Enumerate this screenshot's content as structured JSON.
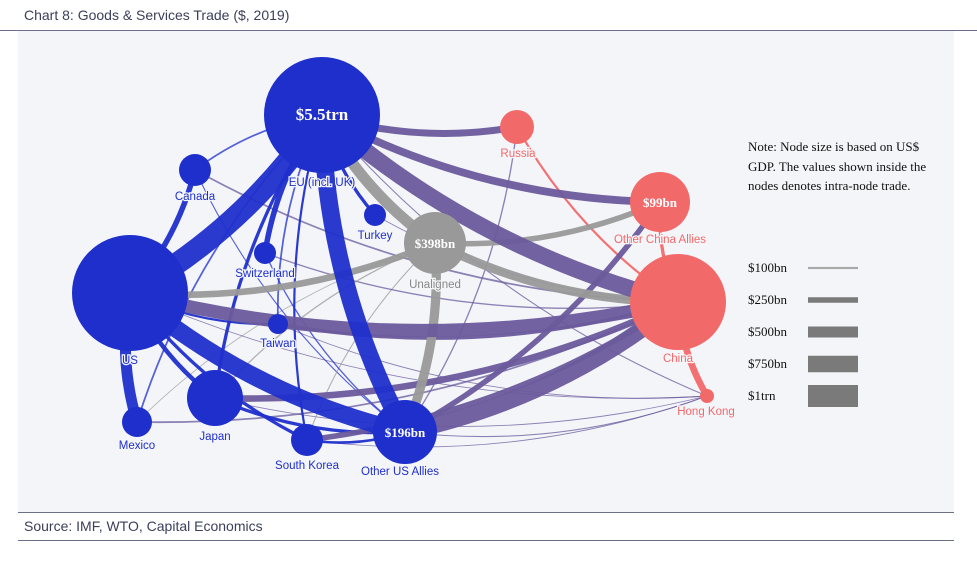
{
  "chart_title": "Chart 8: Goods & Services Trade ($, 2019)",
  "source": "Source: IMF, WTO, Capital Economics",
  "note": "Note: Node size is based on US$ GDP. The values shown inside the nodes denotes intra-node trade.",
  "colors": {
    "us_bloc": "#1f2fcc",
    "china_bloc": "#f2696a",
    "unaligned": "#999999",
    "cross_bloc": "#6a5a9c",
    "background": "#f4f5f9"
  },
  "chart_data": {
    "type": "network",
    "title": "Chart 8: Goods & Services Trade ($, 2019)",
    "nodes": [
      {
        "id": "eu",
        "label": "EU (incl. UK)",
        "group": "us_bloc",
        "value_label": "$5.5trn"
      },
      {
        "id": "us",
        "label": "US",
        "group": "us_bloc",
        "value_label": ""
      },
      {
        "id": "canada",
        "label": "Canada",
        "group": "us_bloc",
        "value_label": ""
      },
      {
        "id": "switzerland",
        "label": "Switzerland",
        "group": "us_bloc",
        "value_label": ""
      },
      {
        "id": "turkey",
        "label": "Turkey",
        "group": "us_bloc",
        "value_label": ""
      },
      {
        "id": "taiwan",
        "label": "Taiwan",
        "group": "us_bloc",
        "value_label": ""
      },
      {
        "id": "japan",
        "label": "Japan",
        "group": "us_bloc",
        "value_label": ""
      },
      {
        "id": "mexico",
        "label": "Mexico",
        "group": "us_bloc",
        "value_label": ""
      },
      {
        "id": "skorea",
        "label": "South Korea",
        "group": "us_bloc",
        "value_label": ""
      },
      {
        "id": "otherus",
        "label": "Other US Allies",
        "group": "us_bloc",
        "value_label": "$196bn"
      },
      {
        "id": "unaligned",
        "label": "Unaligned",
        "group": "unaligned",
        "value_label": "$398bn"
      },
      {
        "id": "russia",
        "label": "Russia",
        "group": "china_bloc",
        "value_label": ""
      },
      {
        "id": "otherchina",
        "label": "Other China Allies",
        "group": "china_bloc",
        "value_label": "$99bn"
      },
      {
        "id": "china",
        "label": "China",
        "group": "china_bloc",
        "value_label": ""
      },
      {
        "id": "hongkong",
        "label": "Hong Kong",
        "group": "china_bloc",
        "value_label": ""
      }
    ],
    "edges": [
      {
        "source": "us",
        "target": "eu",
        "value_bn": 1000
      },
      {
        "source": "us",
        "target": "otherus",
        "value_bn": 800
      },
      {
        "source": "eu",
        "target": "otherus",
        "value_bn": 800
      },
      {
        "source": "eu",
        "target": "china",
        "value_bn": 750
      },
      {
        "source": "us",
        "target": "china",
        "value_bn": 600
      },
      {
        "source": "eu",
        "target": "unaligned",
        "value_bn": 500
      },
      {
        "source": "eu",
        "target": "russia",
        "value_bn": 320
      },
      {
        "source": "eu",
        "target": "otherchina",
        "value_bn": 350
      },
      {
        "source": "otherus",
        "target": "china",
        "value_bn": 750
      },
      {
        "source": "otherus",
        "target": "unaligned",
        "value_bn": 420
      },
      {
        "source": "unaligned",
        "target": "china",
        "value_bn": 400
      },
      {
        "source": "us",
        "target": "unaligned",
        "value_bn": 300
      },
      {
        "source": "unaligned",
        "target": "otherchina",
        "value_bn": 250
      },
      {
        "source": "us",
        "target": "mexico",
        "value_bn": 500
      },
      {
        "source": "us",
        "target": "canada",
        "value_bn": 250
      },
      {
        "source": "us",
        "target": "japan",
        "value_bn": 200
      },
      {
        "source": "china",
        "target": "hongkong",
        "value_bn": 300
      },
      {
        "source": "otherus",
        "target": "otherchina",
        "value_bn": 250
      },
      {
        "source": "eu",
        "target": "switzerland",
        "value_bn": 250
      },
      {
        "source": "eu",
        "target": "turkey",
        "value_bn": 150
      },
      {
        "source": "eu",
        "target": "japan",
        "value_bn": 150
      },
      {
        "source": "japan",
        "target": "china",
        "value_bn": 300
      },
      {
        "source": "skorea",
        "target": "china",
        "value_bn": 250
      },
      {
        "source": "taiwan",
        "target": "china",
        "value_bn": 150
      },
      {
        "source": "japan",
        "target": "otherus",
        "value_bn": 150
      },
      {
        "source": "skorea",
        "target": "otherus",
        "value_bn": 120
      },
      {
        "source": "us",
        "target": "skorea",
        "value_bn": 150
      },
      {
        "source": "us",
        "target": "taiwan",
        "value_bn": 100
      },
      {
        "source": "russia",
        "target": "china",
        "value_bn": 100
      },
      {
        "source": "otherchina",
        "target": "china",
        "value_bn": 150
      },
      {
        "source": "eu",
        "target": "canada",
        "value_bn": 80
      },
      {
        "source": "eu",
        "target": "mexico",
        "value_bn": 80
      },
      {
        "source": "eu",
        "target": "taiwan",
        "value_bn": 80
      },
      {
        "source": "eu",
        "target": "skorea",
        "value_bn": 100
      },
      {
        "source": "canada",
        "target": "china",
        "value_bn": 80
      },
      {
        "source": "mexico",
        "target": "china",
        "value_bn": 80
      },
      {
        "source": "switzerland",
        "target": "china",
        "value_bn": 60
      },
      {
        "source": "turkey",
        "target": "china",
        "value_bn": 40
      },
      {
        "source": "otherus",
        "target": "russia",
        "value_bn": 60
      },
      {
        "source": "japan",
        "target": "hongkong",
        "value_bn": 40
      },
      {
        "source": "otherus",
        "target": "hongkong",
        "value_bn": 50
      },
      {
        "source": "skorea",
        "target": "hongkong",
        "value_bn": 40
      },
      {
        "source": "taiwan",
        "target": "hongkong",
        "value_bn": 40
      },
      {
        "source": "us",
        "target": "hongkong",
        "value_bn": 40
      },
      {
        "source": "switzerland",
        "target": "otherus",
        "value_bn": 60
      },
      {
        "source": "canada",
        "target": "otherus",
        "value_bn": 50
      },
      {
        "source": "unaligned",
        "target": "japan",
        "value_bn": 60
      },
      {
        "source": "unaligned",
        "target": "skorea",
        "value_bn": 50
      },
      {
        "source": "unaligned",
        "target": "mexico",
        "value_bn": 30
      },
      {
        "source": "eu",
        "target": "hongkong",
        "value_bn": 50
      }
    ],
    "legend": [
      {
        "label": "$100bn",
        "value_bn": 100
      },
      {
        "label": "$250bn",
        "value_bn": 250
      },
      {
        "label": "$500bn",
        "value_bn": 500
      },
      {
        "label": "$750bn",
        "value_bn": 750
      },
      {
        "label": "$1trn",
        "value_bn": 1000
      }
    ]
  }
}
